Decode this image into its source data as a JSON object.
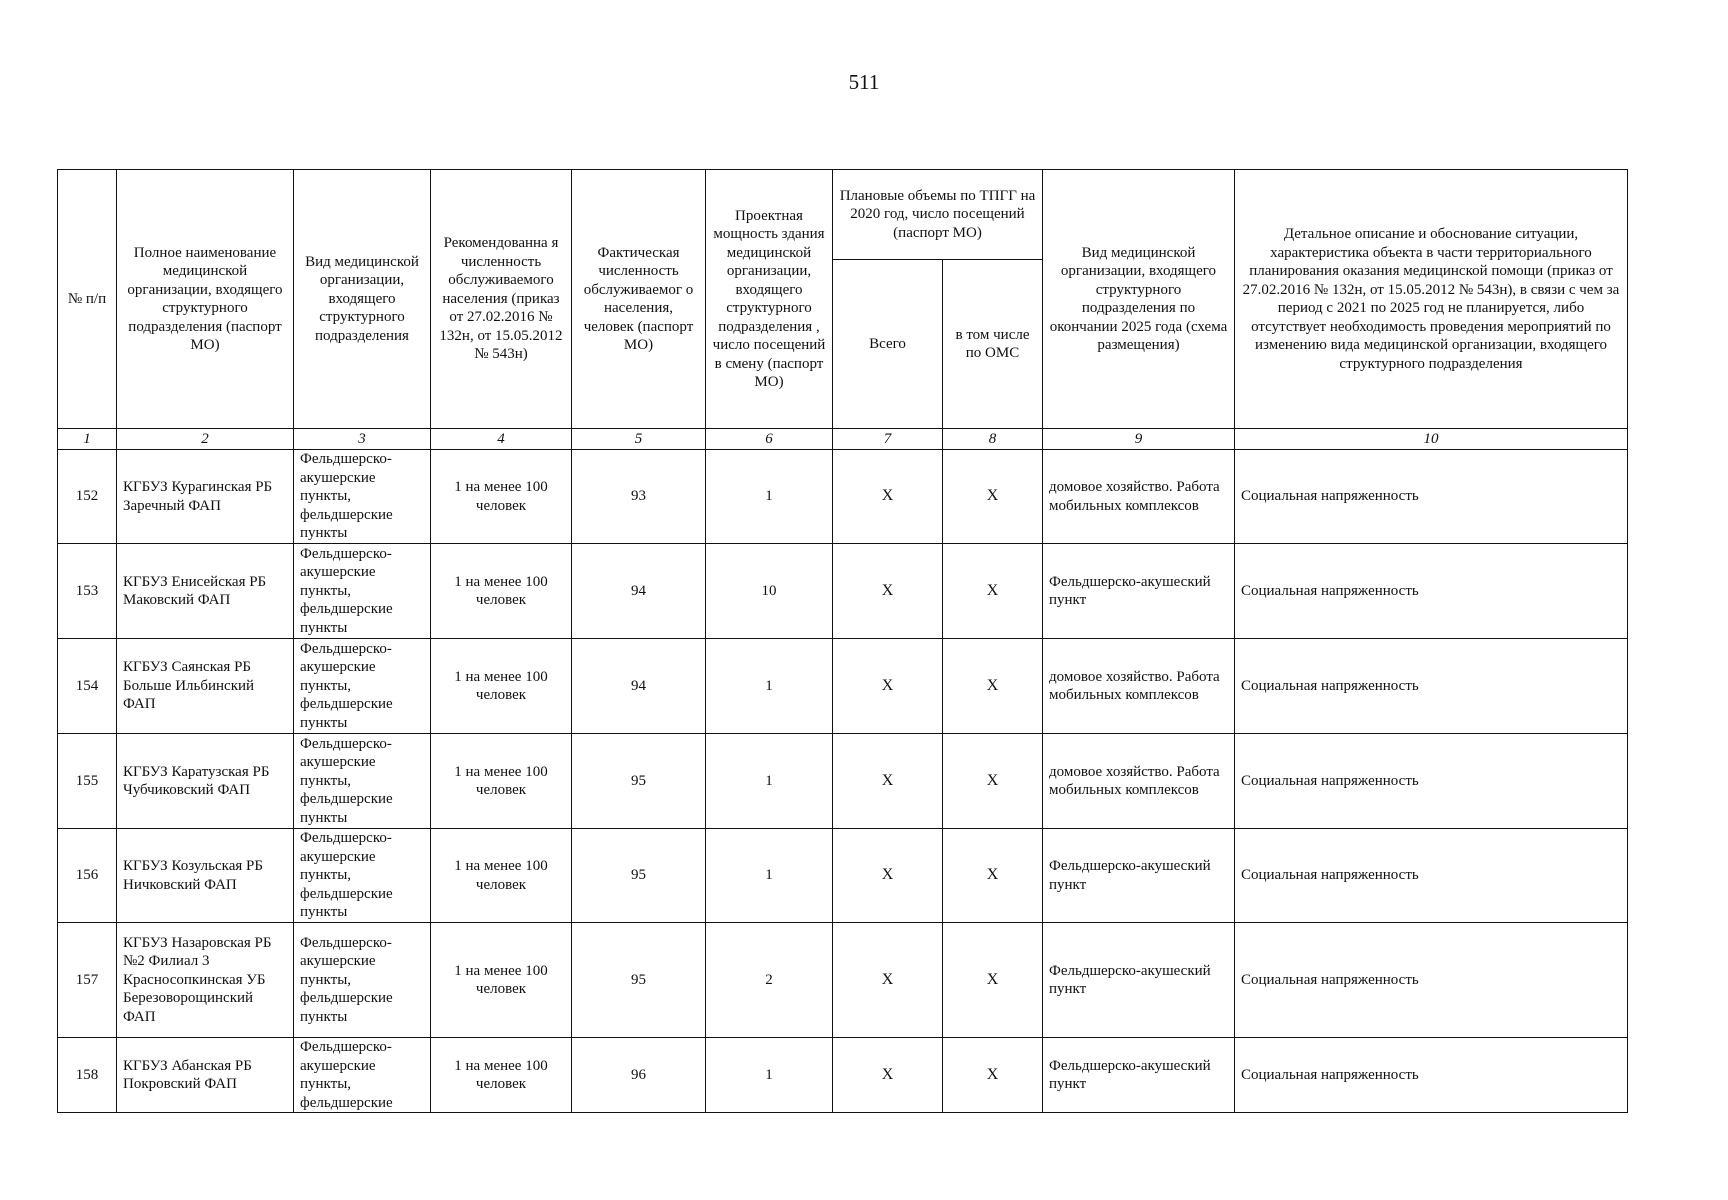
{
  "page_number": "511",
  "header": {
    "col1": "№ п/п",
    "col2": "Полное наименование медицинской организации, входящего структурного подразделения (паспорт МО)",
    "col3": "Вид медицинской организации, входящего структурного подразделения",
    "col4": "Рекомендованна я численность обслуживаемого населения (приказ от 27.02.2016 № 132н, от 15.05.2012 № 543н)",
    "col5": "Фактическая численность обслуживаемог о населения, человек (паспорт МО)",
    "col6": "Проектная мощность здания медицинской организации, входящего структурного подразделения , число посещений в смену (паспорт МО)",
    "col7_8_group": "Плановые объемы по ТПГГ на 2020 год, число посещений (паспорт МО)",
    "col7": "Всего",
    "col8": "в том числе по ОМС",
    "col9": "Вид медицинской организации, входящего структурного подразделения по окончании 2025 года (схема размещения)",
    "col10": "Детальное описание и обоснование ситуации, характеристика объекта в части территориального планирования оказания медицинской помощи (приказ от 27.02.2016 № 132н, от 15.05.2012 № 543н), в связи с чем за период с 2021 по 2025 год не планируется, либо отсутствует необходимость проведения мероприятий по изменению вида медицинской организации, входящего структурного подразделения"
  },
  "column_numbers": [
    "1",
    "2",
    "3",
    "4",
    "5",
    "6",
    "7",
    "8",
    "9",
    "10"
  ],
  "rows": [
    {
      "no": "152",
      "name": "КГБУЗ Курагинская РБ Заречный ФАП",
      "type": "Фельдшерско-акушерские пункты, фельдшерские пункты",
      "recommended": "1 на менее 100 человек",
      "actual": "93",
      "capacity": "1",
      "total": "X",
      "oms": "X",
      "future": "домовое хозяйство. Работа мобильных комплексов",
      "reason": "Социальная напряженность"
    },
    {
      "no": "153",
      "name": "КГБУЗ Енисейская РБ Маковский ФАП",
      "type": "Фельдшерско-акушерские пункты, фельдшерские пункты",
      "recommended": "1 на менее 100 человек",
      "actual": "94",
      "capacity": "10",
      "total": "X",
      "oms": "X",
      "future": "Фельдшерско-акушеский пункт",
      "reason": "Социальная напряженность"
    },
    {
      "no": "154",
      "name": "КГБУЗ Саянская РБ Больше Ильбинский ФАП",
      "type": "Фельдшерско-акушерские пункты, фельдшерские пункты",
      "recommended": "1 на менее 100 человек",
      "actual": "94",
      "capacity": "1",
      "total": "X",
      "oms": "X",
      "future": "домовое хозяйство. Работа мобильных комплексов",
      "reason": "Социальная напряженность"
    },
    {
      "no": "155",
      "name": "КГБУЗ Каратузская РБ Чубчиковский ФАП",
      "type": "Фельдшерско-акушерские пункты, фельдшерские пункты",
      "recommended": "1 на менее 100 человек",
      "actual": "95",
      "capacity": "1",
      "total": "X",
      "oms": "X",
      "future": "домовое хозяйство. Работа мобильных комплексов",
      "reason": "Социальная напряженность"
    },
    {
      "no": "156",
      "name": "КГБУЗ Козульская РБ Ничковский ФАП",
      "type": "Фельдшерско-акушерские пункты, фельдшерские пункты",
      "recommended": "1 на менее 100 человек",
      "actual": "95",
      "capacity": "1",
      "total": "X",
      "oms": "X",
      "future": "Фельдшерско-акушеский пункт",
      "reason": "Социальная напряженность"
    },
    {
      "no": "157",
      "name": "КГБУЗ Назаровская РБ №2 Филиал 3 Красносопкинская УБ Березоворощинский ФАП",
      "type": "Фельдшерско-акушерские пункты, фельдшерские пункты",
      "recommended": "1 на менее 100 человек",
      "actual": "95",
      "capacity": "2",
      "total": "X",
      "oms": "X",
      "future": "Фельдшерско-акушеский пункт",
      "reason": "Социальная напряженность"
    },
    {
      "no": "158",
      "name": "КГБУЗ Абанская РБ Покровский ФАП",
      "type": "Фельдшерско-акушерские пункты, фельдшерские",
      "recommended": "1 на менее 100 человек",
      "actual": "96",
      "capacity": "1",
      "total": "X",
      "oms": "X",
      "future": "Фельдшерско-акушеский пункт",
      "reason": "Социальная напряженность"
    }
  ]
}
